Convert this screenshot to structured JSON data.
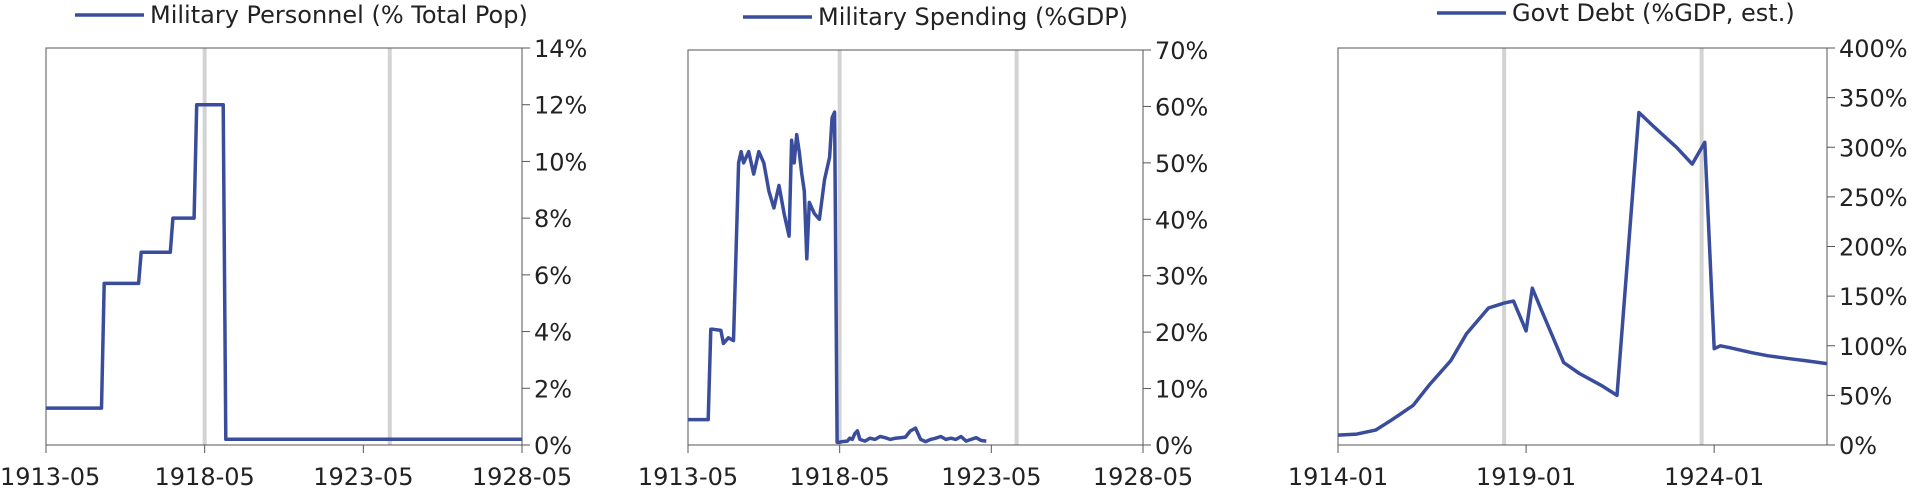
{
  "colors": {
    "line": "#3a4d9c",
    "highlight": "#d3d3d3",
    "frame": "#555555"
  },
  "chart_data": [
    {
      "type": "line",
      "legend": "Military Personnel (% Total Pop)",
      "x_type": "date",
      "xlim": [
        "1913-05",
        "1928-05"
      ],
      "x_ticks": [
        "1913-05",
        "1918-05",
        "1923-05",
        "1928-05"
      ],
      "ylim": [
        0,
        14
      ],
      "y_ticks": [
        0,
        2,
        4,
        6,
        8,
        10,
        12,
        14
      ],
      "y_format": "percent",
      "y_axis_side": "right",
      "highlight_dates": [
        "1918-05",
        "1924-03"
      ],
      "series": [
        {
          "x": [
            "1913-05",
            "1914-01",
            "1915-02",
            "1915-03",
            "1916-04",
            "1916-05",
            "1917-04",
            "1917-05",
            "1918-01",
            "1918-02",
            "1918-12",
            "1919-01",
            "1928-05"
          ],
          "values": [
            1.3,
            1.3,
            1.3,
            5.7,
            5.7,
            6.8,
            6.8,
            8.0,
            8.0,
            12.0,
            12.0,
            0.2,
            0.2
          ]
        }
      ]
    },
    {
      "type": "line",
      "legend": "Military Spending (%GDP)",
      "x_type": "date",
      "xlim": [
        "1913-05",
        "1928-05"
      ],
      "x_ticks": [
        "1913-05",
        "1918-05",
        "1923-05",
        "1928-05"
      ],
      "ylim": [
        0,
        70
      ],
      "y_ticks": [
        0,
        10,
        20,
        30,
        40,
        50,
        60,
        70
      ],
      "y_format": "percent",
      "y_axis_side": "right",
      "highlight_dates": [
        "1918-05",
        "1924-03"
      ],
      "series": [
        {
          "x": [
            "1913-05",
            "1914-01",
            "1914-02",
            "1914-03",
            "1914-06",
            "1914-07",
            "1914-09",
            "1914-11",
            "1915-01",
            "1915-02",
            "1915-03",
            "1915-05",
            "1915-07",
            "1915-09",
            "1915-11",
            "1916-01",
            "1916-03",
            "1916-05",
            "1916-07",
            "1916-09",
            "1916-10",
            "1916-11",
            "1916-12",
            "1917-01",
            "1917-02",
            "1917-03",
            "1917-04",
            "1917-05",
            "1917-07",
            "1917-09",
            "1917-11",
            "1918-01",
            "1918-02",
            "1918-03",
            "1918-04",
            "1918-05",
            "1918-06",
            "1918-08",
            "1918-09",
            "1918-10",
            "1918-11",
            "1918-12",
            "1919-01",
            "1919-03",
            "1919-05",
            "1919-07",
            "1919-09",
            "1919-11",
            "1920-01",
            "1920-03",
            "1920-05",
            "1920-07",
            "1920-09",
            "1920-11",
            "1921-01",
            "1921-03",
            "1921-05",
            "1921-07",
            "1921-09",
            "1921-11",
            "1922-01",
            "1922-03",
            "1922-05",
            "1922-07",
            "1922-09",
            "1922-11",
            "1923-01",
            "1923-03"
          ],
          "values": [
            4.5,
            4.5,
            20.5,
            20.5,
            20.3,
            18.0,
            19.0,
            18.5,
            50.0,
            52.0,
            50.0,
            52.0,
            48.0,
            52.0,
            50.0,
            45.0,
            42.0,
            46.0,
            41.0,
            37.0,
            54.0,
            50.0,
            55.0,
            52.0,
            48.0,
            45.0,
            33.0,
            43.0,
            41.0,
            40.0,
            47.0,
            51.0,
            58.0,
            59.0,
            0.5,
            0.5,
            0.6,
            0.7,
            1.2,
            1.0,
            2.0,
            2.5,
            1.0,
            0.7,
            1.2,
            1.0,
            1.5,
            1.3,
            1.0,
            1.2,
            1.3,
            1.4,
            2.5,
            3.0,
            1.0,
            0.6,
            1.0,
            1.2,
            1.5,
            1.0,
            1.2,
            1.0,
            1.5,
            0.7,
            1.0,
            1.3,
            0.8,
            0.7
          ]
        }
      ]
    },
    {
      "type": "line",
      "legend": "Govt Debt (%GDP, est.)",
      "x_type": "date",
      "xlim": [
        "1914-01",
        "1927-01"
      ],
      "x_ticks": [
        "1914-01",
        "1919-01",
        "1924-01"
      ],
      "ylim": [
        0,
        400
      ],
      "y_ticks": [
        0,
        50,
        100,
        150,
        200,
        250,
        300,
        350,
        400
      ],
      "y_format": "percent",
      "y_axis_side": "right",
      "highlight_dates": [
        "1918-06",
        "1923-09"
      ],
      "series": [
        {
          "x": [
            "1914-01",
            "1914-07",
            "1915-01",
            "1915-06",
            "1916-01",
            "1916-06",
            "1917-01",
            "1917-06",
            "1918-01",
            "1918-03",
            "1918-05",
            "1918-06",
            "1918-09",
            "1919-01",
            "1919-03",
            "1919-06",
            "1920-01",
            "1920-06",
            "1921-01",
            "1921-06",
            "1922-01",
            "1922-06",
            "1923-01",
            "1923-06",
            "1923-10",
            "1924-01",
            "1924-03",
            "1924-06",
            "1925-01",
            "1925-06",
            "1926-01",
            "1926-06",
            "1927-01"
          ],
          "values": [
            10,
            11,
            15,
            25,
            40,
            60,
            85,
            112,
            138,
            140,
            142,
            143,
            145,
            115,
            158,
            135,
            83,
            72,
            60,
            50,
            335,
            320,
            300,
            283,
            305,
            97,
            100,
            98,
            93,
            90,
            87,
            85,
            82
          ]
        }
      ]
    }
  ]
}
